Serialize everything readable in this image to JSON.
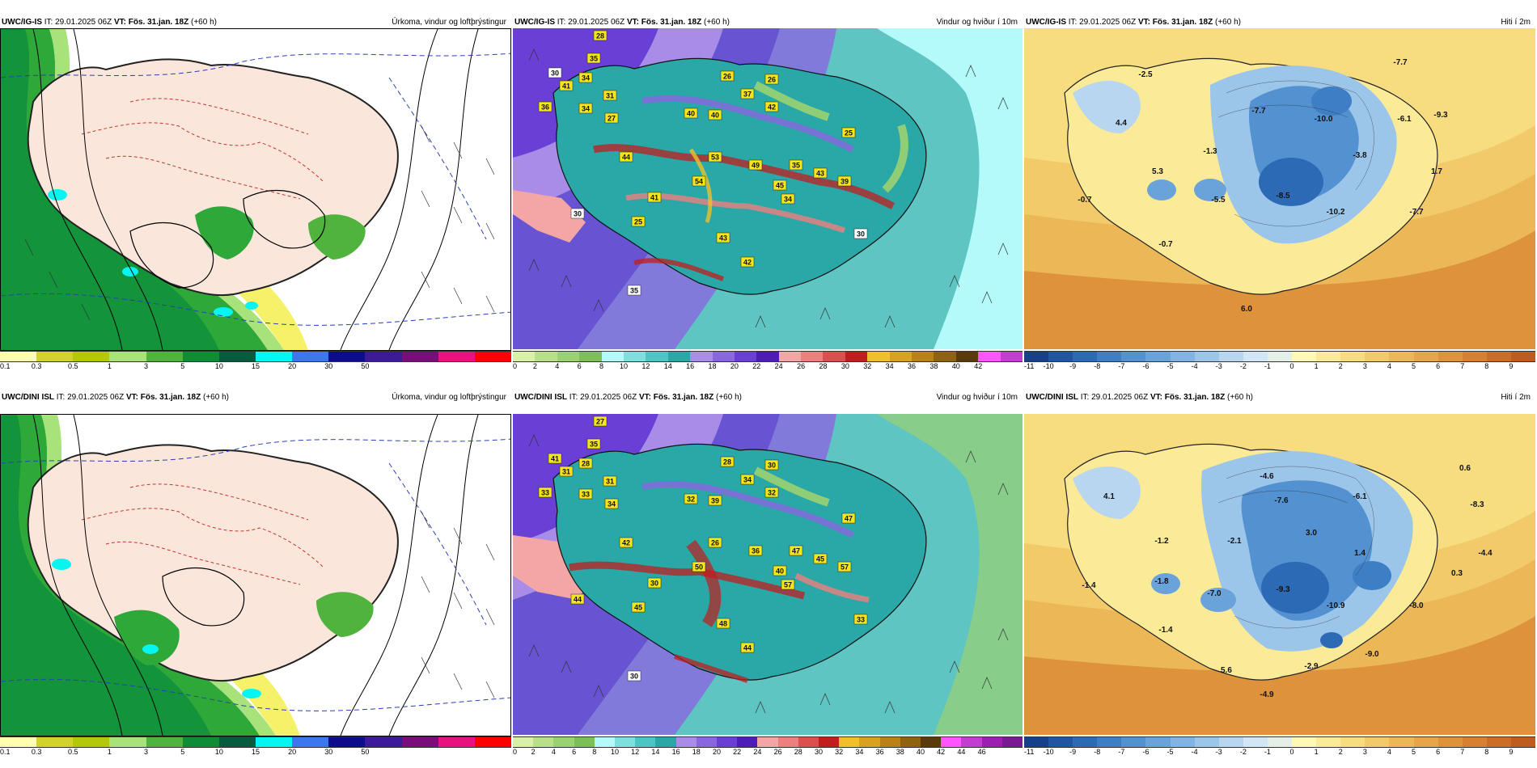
{
  "rows": [
    {
      "panels": [
        {
          "model": "UWC/IG-IS",
          "it": "IT: 29.01.2025 06Z",
          "vt_label": "VT:",
          "vt": "Fös. 31.jan. 18Z",
          "lead": "(+60 h)",
          "title": "Úrkoma, vindur og loftþrýstingur",
          "type": "precip",
          "legend_colors": [
            "#fefeb0",
            "#d2d32a",
            "#b4c80a",
            "#a8e27a",
            "#4fb33e",
            "#0f8d35",
            "#075b3e",
            "#05f5f0",
            "#3c77f0",
            "#0c0c8c",
            "#3d1a9a",
            "#7a0d7a",
            "#e6127d",
            "#ff0000"
          ],
          "legend_ticks": [
            "0.1",
            "0.3",
            "0.5",
            "1",
            "3",
            "5",
            "10",
            "15",
            "20",
            "30",
            "50"
          ]
        },
        {
          "model": "UWC/IG-IS",
          "it": "IT: 29.01.2025 06Z",
          "vt_label": "VT:",
          "vt": "Fös. 31.jan. 18Z",
          "lead": "(+60 h)",
          "title": "Vindur og hviður í 10m",
          "type": "wind",
          "wind_labels": [
            {
              "v": "28",
              "c": "#f5e61a"
            },
            {
              "v": "35",
              "c": "#f5e61a"
            },
            {
              "v": "30",
              "c": "#ffffff"
            },
            {
              "v": "34",
              "c": "#f5e61a"
            },
            {
              "v": "41",
              "c": "#f5e61a"
            },
            {
              "v": "31",
              "c": "#f5e61a"
            },
            {
              "v": "36",
              "c": "#f5e61a"
            },
            {
              "v": "34",
              "c": "#f5e61a"
            },
            {
              "v": "27",
              "c": "#f5e61a"
            },
            {
              "v": "26",
              "c": "#f5e61a"
            },
            {
              "v": "26",
              "c": "#f5e61a"
            },
            {
              "v": "37",
              "c": "#f5e61a"
            },
            {
              "v": "42",
              "c": "#f5e61a"
            },
            {
              "v": "40",
              "c": "#f5e61a"
            },
            {
              "v": "40",
              "c": "#f5e61a"
            },
            {
              "v": "44",
              "c": "#f5e61a"
            },
            {
              "v": "53",
              "c": "#f5e61a"
            },
            {
              "v": "49",
              "c": "#f5e61a"
            },
            {
              "v": "35",
              "c": "#f5e61a"
            },
            {
              "v": "43",
              "c": "#f5e61a"
            },
            {
              "v": "39",
              "c": "#f5e61a"
            },
            {
              "v": "54",
              "c": "#f5e61a"
            },
            {
              "v": "45",
              "c": "#f5e61a"
            },
            {
              "v": "41",
              "c": "#f5e61a"
            },
            {
              "v": "34",
              "c": "#f5e61a"
            },
            {
              "v": "25",
              "c": "#f5e61a"
            },
            {
              "v": "43",
              "c": "#f5e61a"
            },
            {
              "v": "42",
              "c": "#f5e61a"
            },
            {
              "v": "25",
              "c": "#f5e61a"
            },
            {
              "v": "30",
              "c": "#ffffff"
            },
            {
              "v": "30",
              "c": "#ffffff"
            },
            {
              "v": "35",
              "c": "#ffffff"
            }
          ],
          "legend_colors": [
            "#d8f0a8",
            "#b8e08a",
            "#9ad272",
            "#7cbf56",
            "#b4fafa",
            "#7de0de",
            "#4cc6c4",
            "#2aa7a7",
            "#a88ce8",
            "#8a67e0",
            "#6a3fd6",
            "#4e1cb8",
            "#f4a5a5",
            "#ee7f7f",
            "#dc4f4f",
            "#c11d1d",
            "#f0c02a",
            "#d8a11e",
            "#b88216",
            "#8e620e",
            "#5a3a0a",
            "#ff55ff",
            "#c33dd1"
          ],
          "legend_ticks": [
            "0",
            "2",
            "4",
            "6",
            "8",
            "10",
            "12",
            "14",
            "16",
            "18",
            "20",
            "22",
            "24",
            "26",
            "28",
            "30",
            "32",
            "34",
            "36",
            "38",
            "40",
            "42"
          ]
        },
        {
          "model": "UWC/IG-IS",
          "it": "IT: 29.01.2025 06Z",
          "vt_label": "VT:",
          "vt": "Fös. 31.jan. 18Z",
          "lead": "(+60 h)",
          "title": "Hiti í 2m",
          "type": "temp",
          "temp_labels": [
            "-2.5",
            "-7.7",
            "4.4",
            "-7.7",
            "-10.0",
            "-6.1",
            "-9.3",
            "-1.3",
            "-3.8",
            "5.3",
            "1.7",
            "-0.7",
            "-5.5",
            "-8.5",
            "-10.2",
            "-7.7",
            "-0.7",
            "6.0"
          ],
          "legend_colors": [
            "#16408a",
            "#1f55a3",
            "#2c6ab5",
            "#3d7ec5",
            "#5391d0",
            "#6aa3da",
            "#82b4e3",
            "#9cc5ea",
            "#b8d6f0",
            "#d3e6f5",
            "#e4efe8",
            "#fff9b5",
            "#fbeb98",
            "#f7dc80",
            "#f2ca6a",
            "#ecb857",
            "#e6a548",
            "#df923c",
            "#d78031",
            "#cc6d27",
            "#c05b1e"
          ],
          "legend_ticks": [
            "-11",
            "-10",
            "-9",
            "-8",
            "-7",
            "-6",
            "-5",
            "-4",
            "-3",
            "-2",
            "-1",
            "0",
            "1",
            "2",
            "3",
            "4",
            "5",
            "6",
            "7",
            "8",
            "9"
          ]
        }
      ]
    },
    {
      "panels": [
        {
          "model": "UWC/DINI ISL",
          "it": "IT: 29.01.2025 06Z",
          "vt_label": "VT:",
          "vt": "Fös. 31.jan. 18Z",
          "lead": "(+60 h)",
          "title": "Úrkoma, vindur og loftþrýstingur",
          "type": "precip",
          "legend_colors": [
            "#fefeb0",
            "#d2d32a",
            "#b4c80a",
            "#a8e27a",
            "#4fb33e",
            "#0f8d35",
            "#075b3e",
            "#05f5f0",
            "#3c77f0",
            "#0c0c8c",
            "#3d1a9a",
            "#7a0d7a",
            "#e6127d",
            "#ff0000"
          ],
          "legend_ticks": [
            "0.1",
            "0.3",
            "0.5",
            "1",
            "3",
            "5",
            "10",
            "15",
            "20",
            "30",
            "50"
          ]
        },
        {
          "model": "UWC/DINI ISL",
          "it": "IT: 29.01.2025 06Z",
          "vt_label": "VT:",
          "vt": "Fös. 31.jan. 18Z",
          "lead": "(+60 h)",
          "title": "Vindur og hviður í 10m",
          "type": "wind",
          "wind_labels": [
            {
              "v": "27",
              "c": "#f5e61a"
            },
            {
              "v": "35",
              "c": "#f5e61a"
            },
            {
              "v": "41",
              "c": "#f5e61a"
            },
            {
              "v": "28",
              "c": "#f5e61a"
            },
            {
              "v": "31",
              "c": "#f5e61a"
            },
            {
              "v": "31",
              "c": "#f5e61a"
            },
            {
              "v": "33",
              "c": "#f5e61a"
            },
            {
              "v": "33",
              "c": "#f5e61a"
            },
            {
              "v": "34",
              "c": "#f5e61a"
            },
            {
              "v": "28",
              "c": "#f5e61a"
            },
            {
              "v": "30",
              "c": "#f5e61a"
            },
            {
              "v": "34",
              "c": "#f5e61a"
            },
            {
              "v": "32",
              "c": "#f5e61a"
            },
            {
              "v": "32",
              "c": "#f5e61a"
            },
            {
              "v": "39",
              "c": "#f5e61a"
            },
            {
              "v": "42",
              "c": "#f5e61a"
            },
            {
              "v": "26",
              "c": "#f5e61a"
            },
            {
              "v": "36",
              "c": "#f5e61a"
            },
            {
              "v": "47",
              "c": "#f5e61a"
            },
            {
              "v": "45",
              "c": "#f5e61a"
            },
            {
              "v": "57",
              "c": "#f5e61a"
            },
            {
              "v": "50",
              "c": "#f5e61a"
            },
            {
              "v": "40",
              "c": "#f5e61a"
            },
            {
              "v": "30",
              "c": "#f5e61a"
            },
            {
              "v": "57",
              "c": "#f5e61a"
            },
            {
              "v": "47",
              "c": "#f5e61a"
            },
            {
              "v": "48",
              "c": "#f5e61a"
            },
            {
              "v": "44",
              "c": "#f5e61a"
            },
            {
              "v": "45",
              "c": "#f5e61a"
            },
            {
              "v": "44",
              "c": "#f5e61a"
            },
            {
              "v": "33",
              "c": "#f5e61a"
            },
            {
              "v": "30",
              "c": "#ffffff"
            }
          ],
          "legend_colors": [
            "#d8f0a8",
            "#b8e08a",
            "#9ad272",
            "#7cbf56",
            "#b4fafa",
            "#7de0de",
            "#4cc6c4",
            "#2aa7a7",
            "#a88ce8",
            "#8a67e0",
            "#6a3fd6",
            "#4e1cb8",
            "#f4a5a5",
            "#ee7f7f",
            "#dc4f4f",
            "#c11d1d",
            "#f0c02a",
            "#d8a11e",
            "#b88216",
            "#8e620e",
            "#5a3a0a",
            "#ff55ff",
            "#c33dd1",
            "#9b1fb0",
            "#7a1a92"
          ],
          "legend_ticks": [
            "0",
            "2",
            "4",
            "6",
            "8",
            "10",
            "12",
            "14",
            "16",
            "18",
            "20",
            "22",
            "24",
            "26",
            "28",
            "30",
            "32",
            "34",
            "36",
            "38",
            "40",
            "42",
            "44",
            "46"
          ]
        },
        {
          "model": "UWC/DINI ISL",
          "it": "IT: 29.01.2025 06Z",
          "vt_label": "VT:",
          "vt": "Fös. 31.jan. 18Z",
          "lead": "(+60 h)",
          "title": "Hiti í 2m",
          "type": "temp",
          "temp_labels": [
            "4.1",
            "-4.6",
            "0.6",
            "-7.6",
            "-6.1",
            "-8.3",
            "-1.2",
            "-2.1",
            "3.0",
            "1.4",
            "-4.4",
            "0.3",
            "-1.4",
            "-1.8",
            "-7.0",
            "-9.3",
            "-10.9",
            "-8.0",
            "-1.4",
            "-9.0",
            "5.6",
            "-2.9",
            "-4.9"
          ],
          "legend_colors": [
            "#16408a",
            "#1f55a3",
            "#2c6ab5",
            "#3d7ec5",
            "#5391d0",
            "#6aa3da",
            "#82b4e3",
            "#9cc5ea",
            "#b8d6f0",
            "#d3e6f5",
            "#e4efe8",
            "#fff9b5",
            "#fbeb98",
            "#f7dc80",
            "#f2ca6a",
            "#ecb857",
            "#e6a548",
            "#df923c",
            "#d78031",
            "#cc6d27",
            "#c05b1e"
          ],
          "legend_ticks": [
            "-11",
            "-10",
            "-9",
            "-8",
            "-7",
            "-6",
            "-5",
            "-4",
            "-3",
            "-2",
            "-1",
            "0",
            "1",
            "2",
            "3",
            "4",
            "5",
            "6",
            "7",
            "8",
            "9"
          ]
        }
      ]
    }
  ]
}
